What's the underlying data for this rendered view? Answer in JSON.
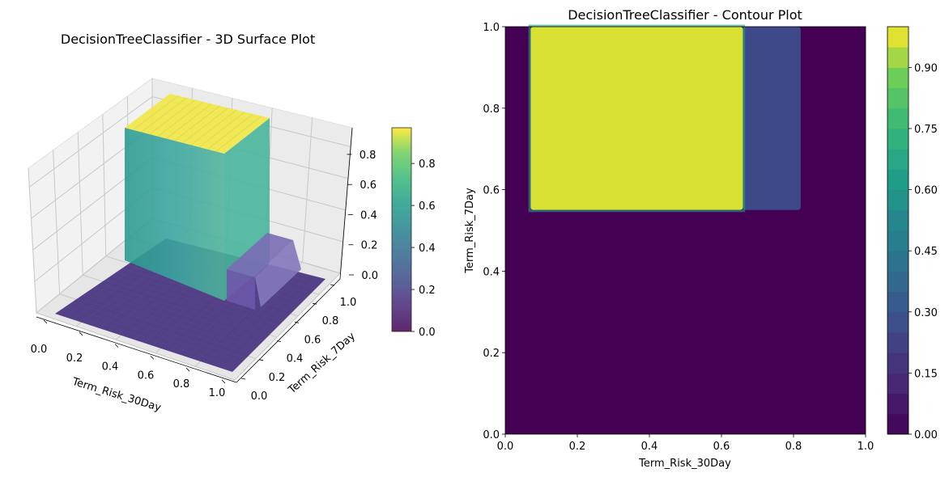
{
  "chart_data": [
    {
      "type": "surface3d",
      "title": "DecisionTreeClassifier - 3D Surface Plot",
      "xlabel": "Term_Risk_30Day",
      "ylabel": "Term_Risk_7Day",
      "zlabel": "",
      "xlim": [
        0,
        1
      ],
      "ylim": [
        0,
        1
      ],
      "zlim": [
        0,
        0.95
      ],
      "x_ticks": [
        "0.0",
        "0.2",
        "0.4",
        "0.6",
        "0.8",
        "1.0"
      ],
      "y_ticks": [
        "0.0",
        "0.2",
        "0.4",
        "0.6",
        "0.8",
        "1.0"
      ],
      "z_ticks": [
        "0.0",
        "0.2",
        "0.4",
        "0.6",
        "0.8"
      ],
      "colormap": "viridis",
      "grid": true,
      "colorbar_ticks": [
        "0.0",
        "0.2",
        "0.4",
        "0.6",
        "0.8"
      ],
      "regions": [
        {
          "x": [
            0.0,
            1.0
          ],
          "y": [
            0.0,
            1.0
          ],
          "z": 0.0
        },
        {
          "x": [
            0.07,
            0.66
          ],
          "y": [
            0.55,
            1.0
          ],
          "z": 0.97
        },
        {
          "x": [
            0.66,
            0.82
          ],
          "y": [
            0.55,
            1.0
          ],
          "z": 0.25
        }
      ]
    },
    {
      "type": "contour",
      "title": "DecisionTreeClassifier - Contour Plot",
      "xlabel": "Term_Risk_30Day",
      "ylabel": "Term_Risk_7Day",
      "xlim": [
        0,
        1
      ],
      "ylim": [
        0,
        1
      ],
      "x_ticks": [
        "0.0",
        "0.2",
        "0.4",
        "0.6",
        "0.8",
        "1.0"
      ],
      "y_ticks": [
        "0.0",
        "0.2",
        "0.4",
        "0.6",
        "0.8",
        "1.0"
      ],
      "colormap": "viridis",
      "levels": [
        0.0,
        0.05,
        0.1,
        0.15,
        0.2,
        0.25,
        0.3,
        0.35,
        0.4,
        0.45,
        0.5,
        0.55,
        0.6,
        0.65,
        0.7,
        0.75,
        0.8,
        0.85,
        0.9,
        0.95,
        1.0
      ],
      "colorbar_ticks": [
        "0.00",
        "0.15",
        "0.30",
        "0.45",
        "0.60",
        "0.75",
        "0.90"
      ],
      "regions": [
        {
          "x": [
            0.0,
            1.0
          ],
          "y": [
            0.0,
            1.0
          ],
          "z": 0.0
        },
        {
          "x": [
            0.07,
            0.66
          ],
          "y": [
            0.55,
            1.0
          ],
          "z": 0.97
        },
        {
          "x": [
            0.66,
            0.82
          ],
          "y": [
            0.55,
            1.0
          ],
          "z": 0.25
        }
      ]
    }
  ]
}
